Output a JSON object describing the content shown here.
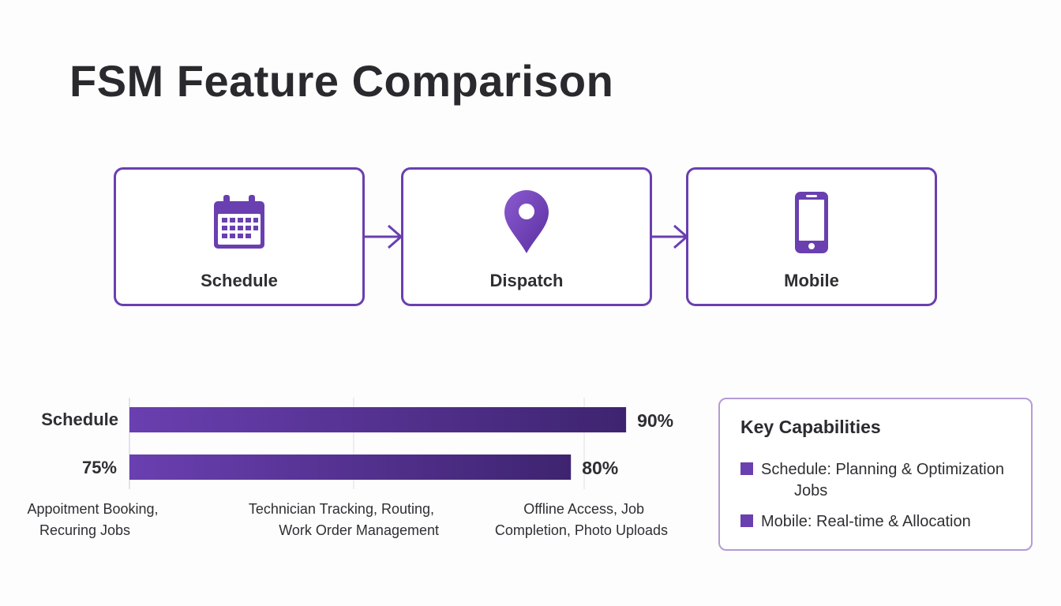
{
  "title": "FSM Feature Comparison",
  "colors": {
    "accent": "#6a3fb0",
    "accent_dark": "#3e2470",
    "accent_light": "#b49bd6"
  },
  "flow": {
    "steps": [
      {
        "label": "Schedule",
        "icon": "calendar-icon"
      },
      {
        "label": "Dispatch",
        "icon": "map-pin-icon"
      },
      {
        "label": "Mobile",
        "icon": "smartphone-icon"
      }
    ]
  },
  "chart_data": {
    "type": "bar",
    "orientation": "horizontal",
    "xlim": [
      0,
      100
    ],
    "grid": true,
    "bars": [
      {
        "label": "Schedule",
        "value": 90,
        "value_label": "90%"
      },
      {
        "label": "75%",
        "value": 80,
        "value_label": "80%"
      }
    ],
    "annotations": [
      {
        "lines": [
          "Appoitment Booking,",
          "Recuring Jobs"
        ]
      },
      {
        "lines": [
          "Technician Tracking, Routing,",
          "Work Order Management"
        ]
      },
      {
        "lines": [
          "Offline Access, Job",
          "Completion, Photo Uploads"
        ]
      }
    ]
  },
  "key_capabilities": {
    "title": "Key Capabilities",
    "items": [
      {
        "name": "Schedule:",
        "text": " Planning & Optimization",
        "cont": "Jobs"
      },
      {
        "name": "Mobile:",
        "text": " Real-time & Allocation",
        "cont": ""
      }
    ]
  }
}
